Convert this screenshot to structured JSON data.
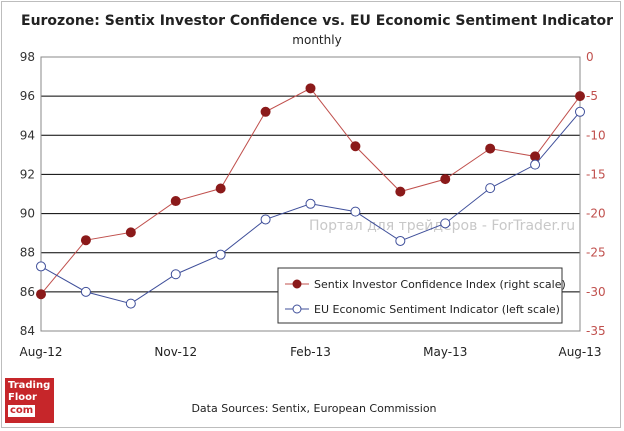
{
  "chart_data": {
    "type": "line",
    "title": "Eurozone: Sentix Investor Confidence vs. EU Economic  Sentiment Indicator",
    "subtitle": "monthly",
    "x": [
      "Aug-12",
      "Sep-12",
      "Oct-12",
      "Nov-12",
      "Dec-12",
      "Jan-13",
      "Feb-13",
      "Mar-13",
      "Apr-13",
      "May-13",
      "Jun-13",
      "Jul-13",
      "Aug-13"
    ],
    "x_tick_labels": [
      "Aug-12",
      "Nov-12",
      "Feb-13",
      "May-13",
      "Aug-13"
    ],
    "left_axis": {
      "min": 84,
      "max": 98,
      "ticks": [
        84,
        86,
        88,
        90,
        92,
        94,
        96,
        98
      ]
    },
    "right_axis": {
      "min": -35,
      "max": 0,
      "ticks": [
        -35,
        -30,
        -25,
        -20,
        -15,
        -10,
        -5,
        0
      ]
    },
    "grid": "horizontal",
    "legend_position": "bottom-right",
    "series": [
      {
        "name": "Sentix Investor Confidence Index (right scale)",
        "axis": "right",
        "color": "#c0504d",
        "marker_color": "#8b1a1a",
        "values": [
          -30.3,
          -23.4,
          -22.4,
          -18.4,
          -16.8,
          -7.0,
          -4.0,
          -11.4,
          -17.2,
          -15.6,
          -11.7,
          -12.7,
          -5.0
        ]
      },
      {
        "name": "EU Economic Sentiment Indicator (left scale)",
        "axis": "left",
        "color": "#3f4f9a",
        "marker_color": "#ffffff",
        "values": [
          87.3,
          86.0,
          85.4,
          86.9,
          87.9,
          89.7,
          90.5,
          90.1,
          88.6,
          89.5,
          91.3,
          92.5,
          95.2
        ]
      }
    ]
  },
  "watermark": "Портал для трейдеров - ForTrader.ru",
  "source_text": "Data Sources: Sentix, European Commission",
  "logo": {
    "line1": "Trading",
    "line2": "Floor",
    "line3": "com"
  }
}
